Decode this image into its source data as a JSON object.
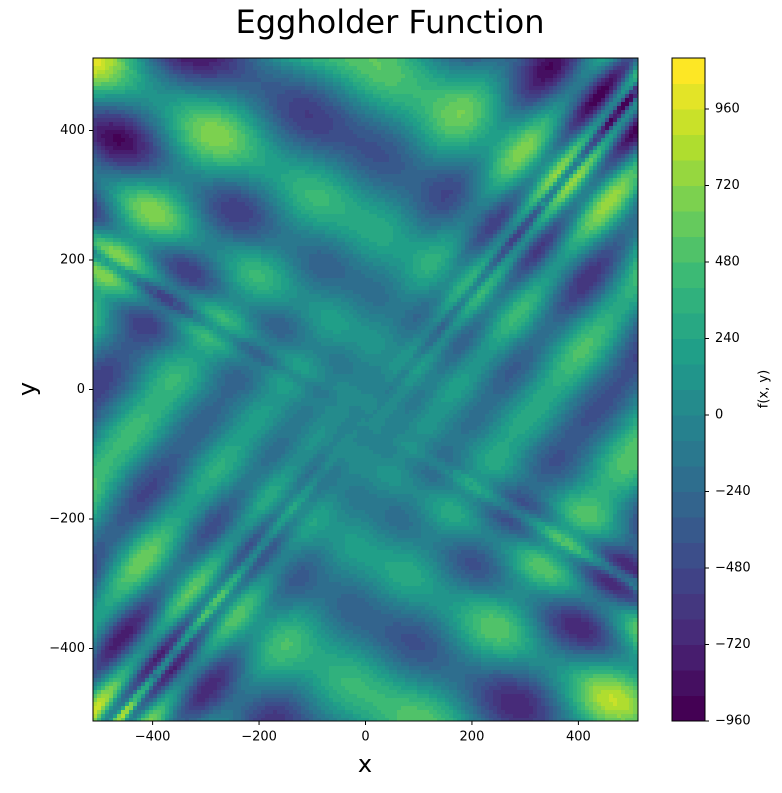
{
  "chart_data": {
    "type": "contourf",
    "title": "Eggholder Function",
    "function": "eggholder",
    "x_label": "x",
    "y_label": "y",
    "colorbar_label": "f(x, y)",
    "xlim": [
      -512,
      512
    ],
    "ylim": [
      -512,
      512
    ],
    "xticks": [
      {
        "value": -400,
        "label": "−400"
      },
      {
        "value": -200,
        "label": "−200"
      },
      0,
      200,
      400
    ],
    "yticks": [
      {
        "value": -400,
        "label": "−400"
      },
      {
        "value": -200,
        "label": "−200"
      },
      0,
      200,
      400
    ],
    "levels": [
      -960,
      -880,
      -800,
      -720,
      -640,
      -560,
      -480,
      -400,
      -320,
      -240,
      -160,
      -80,
      0,
      80,
      160,
      240,
      320,
      400,
      480,
      560,
      640,
      720,
      800,
      880,
      960,
      1040,
      1120
    ],
    "colorbar_ticks": [
      {
        "value": -960,
        "label": "−960"
      },
      {
        "value": -720,
        "label": "−720"
      },
      {
        "value": -480,
        "label": "−480"
      },
      {
        "value": -240,
        "label": "−240"
      },
      0,
      240,
      480,
      720,
      960
    ],
    "colormap": [
      "#440154",
      "#482878",
      "#3e4989",
      "#31688e",
      "#26828e",
      "#1f9e89",
      "#35b779",
      "#6ece58",
      "#b5de2b",
      "#fde725"
    ]
  }
}
